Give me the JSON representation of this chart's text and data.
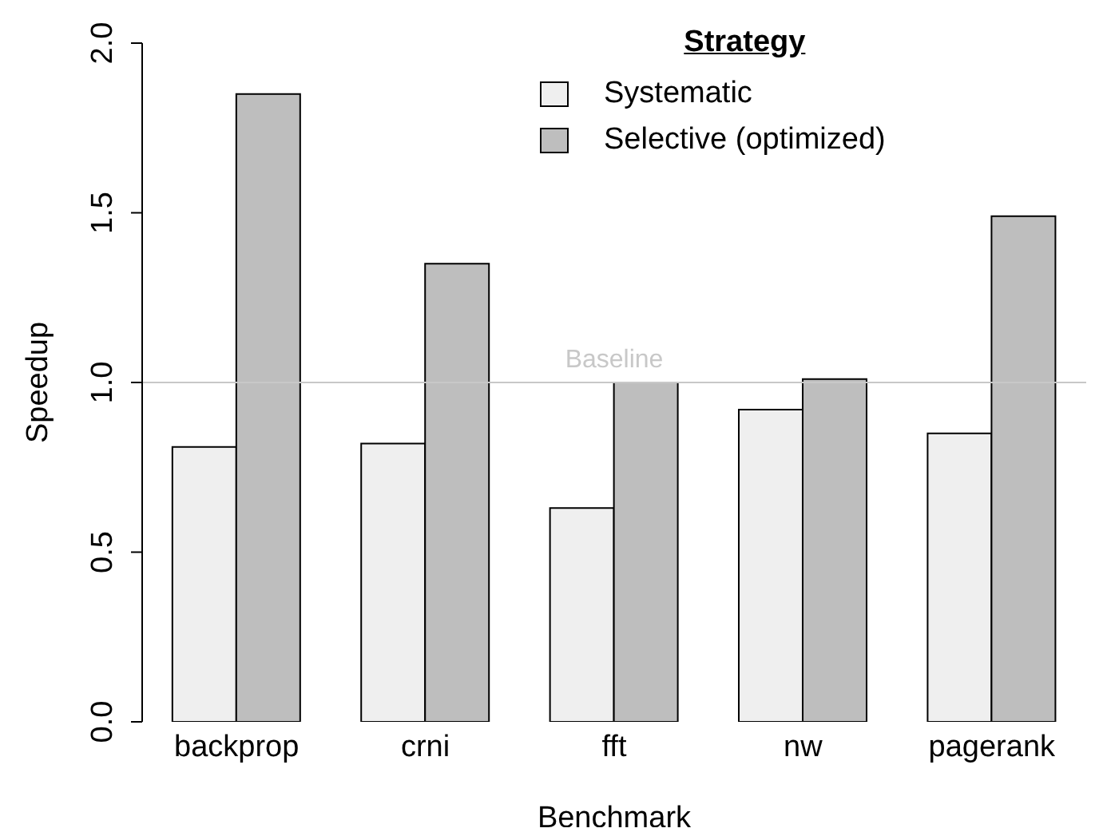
{
  "chart_data": {
    "type": "bar",
    "xlabel": "Benchmark",
    "ylabel": "Speedup",
    "legend_title": "Strategy",
    "categories": [
      "backprop",
      "crni",
      "fft",
      "nw",
      "pagerank"
    ],
    "series": [
      {
        "name": "Systematic",
        "color": "#efefef",
        "values": [
          0.81,
          0.82,
          0.63,
          0.92,
          0.85
        ]
      },
      {
        "name": "Selective (optimized)",
        "color": "#bebebe",
        "values": [
          1.85,
          1.35,
          1.0,
          1.01,
          1.49
        ]
      }
    ],
    "ylim": [
      0,
      2
    ],
    "yticks": [
      {
        "value": 0,
        "label": "0.0"
      },
      {
        "value": 0.5,
        "label": "0.5"
      },
      {
        "value": 1,
        "label": "1.0"
      },
      {
        "value": 1.5,
        "label": "1.5"
      },
      {
        "value": 2,
        "label": "2.0"
      }
    ],
    "ref_lines": [
      {
        "axis": "y",
        "value": 1,
        "label": "Baseline",
        "color": "#c8c8c8"
      }
    ],
    "grid": false,
    "legend": "top"
  }
}
